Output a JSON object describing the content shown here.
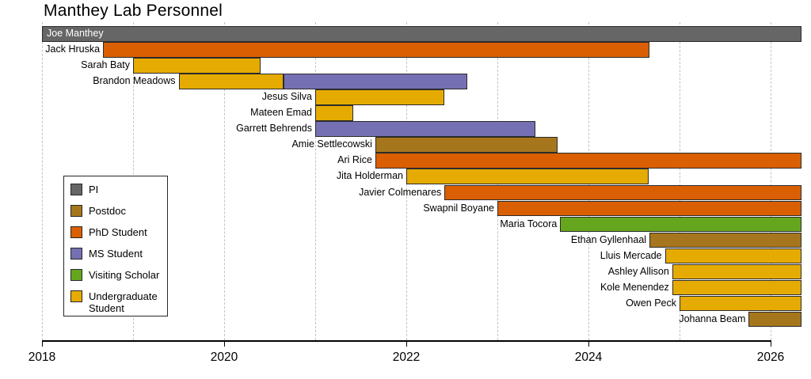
{
  "title": "Manthey Lab Personnel",
  "colors": {
    "pi": "#666666",
    "postdoc": "#A6761D",
    "phd": "#D95F02",
    "ms": "#7570B3",
    "visiting": "#66A61E",
    "undergrad": "#E6AB02",
    "bar_border": "#2b2b2b",
    "gridline": "#c3c3c3",
    "axis": "#000000",
    "background": "#ffffff"
  },
  "legend": {
    "items": [
      {
        "label": "PI",
        "role": "pi"
      },
      {
        "label": "Postdoc",
        "role": "postdoc"
      },
      {
        "label": "PhD Student",
        "role": "phd"
      },
      {
        "label": "MS Student",
        "role": "ms"
      },
      {
        "label": "Visiting Scholar",
        "role": "visiting"
      },
      {
        "label": "Undergraduate Student",
        "role": "undergrad"
      }
    ]
  },
  "chart_data": {
    "type": "bar",
    "subtype": "gantt-timeline",
    "title": "Manthey Lab Personnel",
    "xlabel": "",
    "ylabel": "",
    "x_min": 2018,
    "x_max": 2026.34,
    "x_ticks": [
      2018,
      2020,
      2022,
      2024,
      2026
    ],
    "gridline_years": [
      2018,
      2019,
      2020,
      2021,
      2022,
      2023,
      2024,
      2025,
      2026
    ],
    "grid": "dashed-vertical",
    "legend_position": "middle-left",
    "rows": [
      {
        "name": "Joe Manthey",
        "label_inside": true,
        "segments": [
          {
            "role": "pi",
            "start": 2018.0,
            "end": 2026.34
          }
        ]
      },
      {
        "name": "Jack Hruska",
        "label_inside": false,
        "segments": [
          {
            "role": "phd",
            "start": 2018.67,
            "end": 2024.67
          }
        ]
      },
      {
        "name": "Sarah Baty",
        "label_inside": false,
        "segments": [
          {
            "role": "undergrad",
            "start": 2019.0,
            "end": 2020.4
          }
        ]
      },
      {
        "name": "Brandon Meadows",
        "label_inside": false,
        "segments": [
          {
            "role": "undergrad",
            "start": 2019.5,
            "end": 2020.65
          },
          {
            "role": "ms",
            "start": 2020.65,
            "end": 2022.67
          }
        ]
      },
      {
        "name": "Jesus Silva",
        "label_inside": false,
        "segments": [
          {
            "role": "undergrad",
            "start": 2021.0,
            "end": 2022.42
          }
        ]
      },
      {
        "name": "Mateen Emad",
        "label_inside": false,
        "segments": [
          {
            "role": "undergrad",
            "start": 2021.0,
            "end": 2021.42
          }
        ]
      },
      {
        "name": "Garrett Behrends",
        "label_inside": false,
        "segments": [
          {
            "role": "ms",
            "start": 2021.0,
            "end": 2023.42
          }
        ]
      },
      {
        "name": "Amie Settlecowski",
        "label_inside": false,
        "segments": [
          {
            "role": "postdoc",
            "start": 2021.66,
            "end": 2023.66
          }
        ]
      },
      {
        "name": "Ari Rice",
        "label_inside": false,
        "segments": [
          {
            "role": "phd",
            "start": 2021.66,
            "end": 2026.34
          }
        ]
      },
      {
        "name": "Jita Holderman",
        "label_inside": false,
        "segments": [
          {
            "role": "undergrad",
            "start": 2022.0,
            "end": 2024.66
          }
        ]
      },
      {
        "name": "Javier Colmenares",
        "label_inside": false,
        "segments": [
          {
            "role": "phd",
            "start": 2022.42,
            "end": 2026.34
          }
        ]
      },
      {
        "name": "Swapnil Boyane",
        "label_inside": false,
        "segments": [
          {
            "role": "phd",
            "start": 2023.0,
            "end": 2026.34
          }
        ]
      },
      {
        "name": "Maria Tocora",
        "label_inside": false,
        "segments": [
          {
            "role": "visiting",
            "start": 2023.69,
            "end": 2026.34
          }
        ]
      },
      {
        "name": "Ethan Gyllenhaal",
        "label_inside": false,
        "segments": [
          {
            "role": "postdoc",
            "start": 2024.67,
            "end": 2026.34
          }
        ]
      },
      {
        "name": "Lluis Mercade",
        "label_inside": false,
        "segments": [
          {
            "role": "undergrad",
            "start": 2024.84,
            "end": 2026.34
          }
        ]
      },
      {
        "name": "Ashley Allison",
        "label_inside": false,
        "segments": [
          {
            "role": "undergrad",
            "start": 2024.92,
            "end": 2026.34
          }
        ]
      },
      {
        "name": "Kole Menendez",
        "label_inside": false,
        "segments": [
          {
            "role": "undergrad",
            "start": 2024.92,
            "end": 2026.34
          }
        ]
      },
      {
        "name": "Owen Peck",
        "label_inside": false,
        "segments": [
          {
            "role": "undergrad",
            "start": 2025.0,
            "end": 2026.34
          }
        ]
      },
      {
        "name": "Johanna Beam",
        "label_inside": false,
        "segments": [
          {
            "role": "postdoc",
            "start": 2025.76,
            "end": 2026.34
          }
        ]
      }
    ]
  }
}
